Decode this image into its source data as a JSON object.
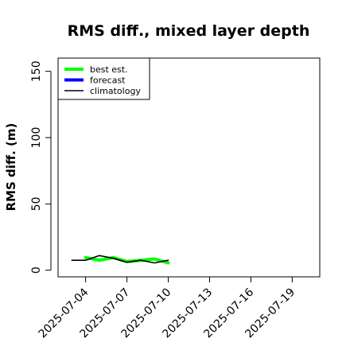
{
  "chart_data": {
    "type": "line",
    "title": "RMS diff., mixed layer depth",
    "xlabel": "",
    "ylabel": "RMS diff. (m)",
    "x_ticks": [
      "2025-07-04",
      "2025-07-07",
      "2025-07-10",
      "2025-07-13",
      "2025-07-16",
      "2025-07-19"
    ],
    "highlight_tick": "2025-07-10",
    "highlight_color": "#228b22",
    "xlim": [
      "2025-07-02",
      "2025-07-21"
    ],
    "y_ticks": [
      0,
      50,
      100,
      150
    ],
    "ylim": [
      -5,
      160
    ],
    "grid": false,
    "legend_position": "top-left",
    "series": [
      {
        "name": "best est.",
        "color": "#00ff00",
        "width": 4,
        "x": [
          "2025-07-04",
          "2025-07-05",
          "2025-07-06",
          "2025-07-07",
          "2025-07-08",
          "2025-07-09",
          "2025-07-10"
        ],
        "values": [
          9.5,
          7.5,
          9.5,
          6.5,
          7.5,
          8.5,
          5.5
        ]
      },
      {
        "name": "forecast",
        "color": "#0000ff",
        "width": 4,
        "x": [],
        "values": []
      },
      {
        "name": "climatology",
        "color": "#000000",
        "width": 1.6,
        "x": [
          "2025-07-03",
          "2025-07-04",
          "2025-07-05",
          "2025-07-06",
          "2025-07-07",
          "2025-07-08",
          "2025-07-09",
          "2025-07-10"
        ],
        "values": [
          7.5,
          7.5,
          11,
          9,
          6,
          7.5,
          5.5,
          7.5
        ]
      }
    ]
  }
}
